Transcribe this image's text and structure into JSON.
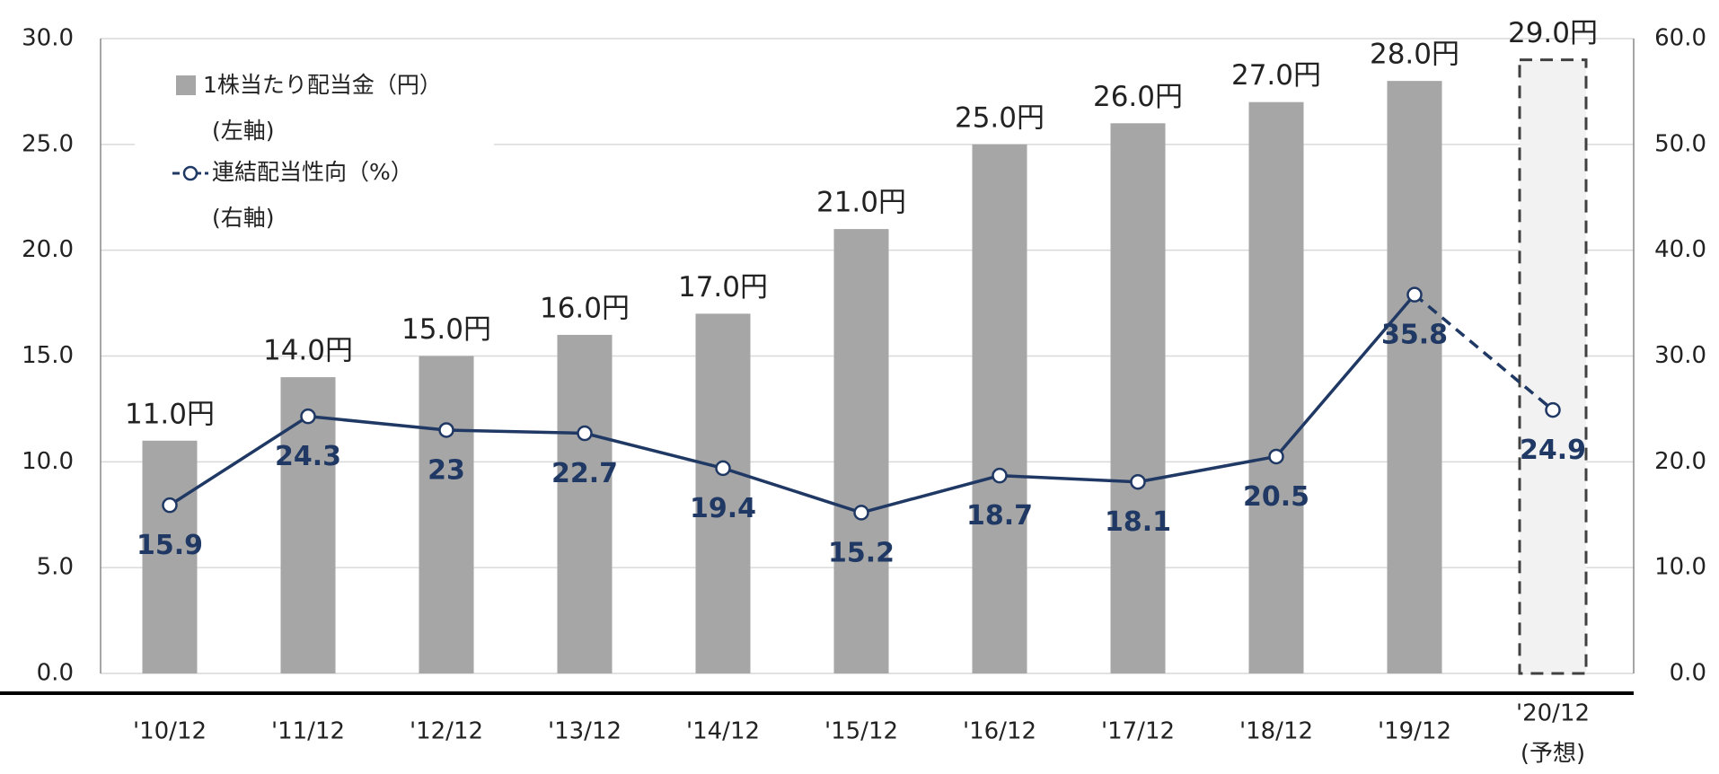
{
  "chart_data": {
    "type": "bar_line",
    "categories": [
      "'10/12",
      "'11/12",
      "'12/12",
      "'13/12",
      "'14/12",
      "'15/12",
      "'16/12",
      "'17/12",
      "'18/12",
      "'19/12",
      "'20/12"
    ],
    "forecast_label": "(予想)",
    "series": [
      {
        "name": "1株当たり配当金（円）",
        "axis_note": "(左軸)",
        "type": "bar",
        "color": "#a6a6a6",
        "values": [
          11.0,
          14.0,
          15.0,
          16.0,
          17.0,
          21.0,
          25.0,
          26.0,
          27.0,
          28.0,
          29.0
        ],
        "value_labels": [
          "11.0円",
          "14.0円",
          "15.0円",
          "16.0円",
          "17.0円",
          "21.0円",
          "25.0円",
          "26.0円",
          "27.0円",
          "28.0円",
          "29.0円"
        ]
      },
      {
        "name": "連結配当性向（%）",
        "axis_note": "(右軸)",
        "type": "line",
        "axis": "y2",
        "color": "#1f3864",
        "values": [
          15.9,
          24.3,
          23.0,
          22.7,
          19.4,
          15.2,
          18.7,
          18.1,
          20.5,
          35.8,
          24.9
        ]
      }
    ],
    "ylim": [
      0,
      30
    ],
    "yticks": [
      {
        "value": 0,
        "label": "0.0"
      },
      {
        "value": 5,
        "label": "5.0"
      },
      {
        "value": 10,
        "label": "10.0"
      },
      {
        "value": 15,
        "label": "15.0"
      },
      {
        "value": 20,
        "label": "20.0"
      },
      {
        "value": 25,
        "label": "25.0"
      },
      {
        "value": 30,
        "label": "30.0"
      }
    ],
    "y2lim": [
      0,
      60
    ],
    "y2ticks": [
      {
        "value": 0,
        "label": "0.0"
      },
      {
        "value": 10,
        "label": "10.0"
      },
      {
        "value": 20,
        "label": "20.0"
      },
      {
        "value": 30,
        "label": "30.0"
      },
      {
        "value": 40,
        "label": "40.0"
      },
      {
        "value": 50,
        "label": "50.0"
      },
      {
        "value": 60,
        "label": "60.0"
      }
    ],
    "grid": true
  }
}
